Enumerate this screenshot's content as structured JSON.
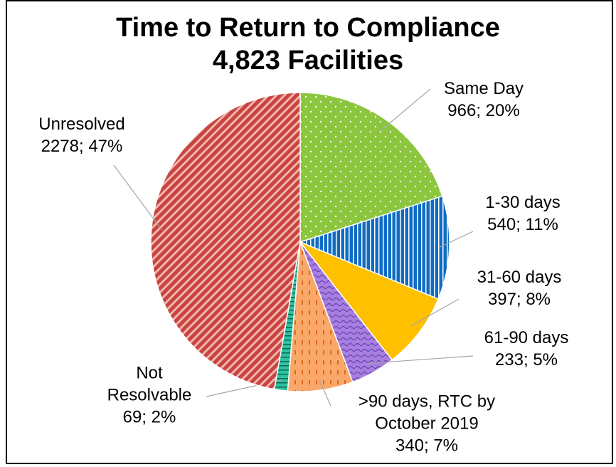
{
  "chart_data": {
    "type": "pie",
    "title": "Time to Return to Compliance",
    "subtitle": "4,823 Facilities",
    "categories": [
      "Same Day",
      "1-30 days",
      "31-60 days",
      "61-90 days",
      ">90 days, RTC by October 2019",
      "Not Resolvable",
      "Unresolved"
    ],
    "values": [
      966,
      540,
      397,
      233,
      340,
      69,
      2278
    ],
    "value_labels": [
      "966; 20%",
      "540; 11%",
      "397; 8%",
      "233; 5%",
      "340; 7%",
      "69; 2%",
      "2278; 47%"
    ],
    "colors": [
      "#8cc63f",
      "#0f6cc4",
      "#ffc000",
      "#a77fe0",
      "#f9a86a",
      "#2cc3a2",
      "#c9443f"
    ]
  }
}
